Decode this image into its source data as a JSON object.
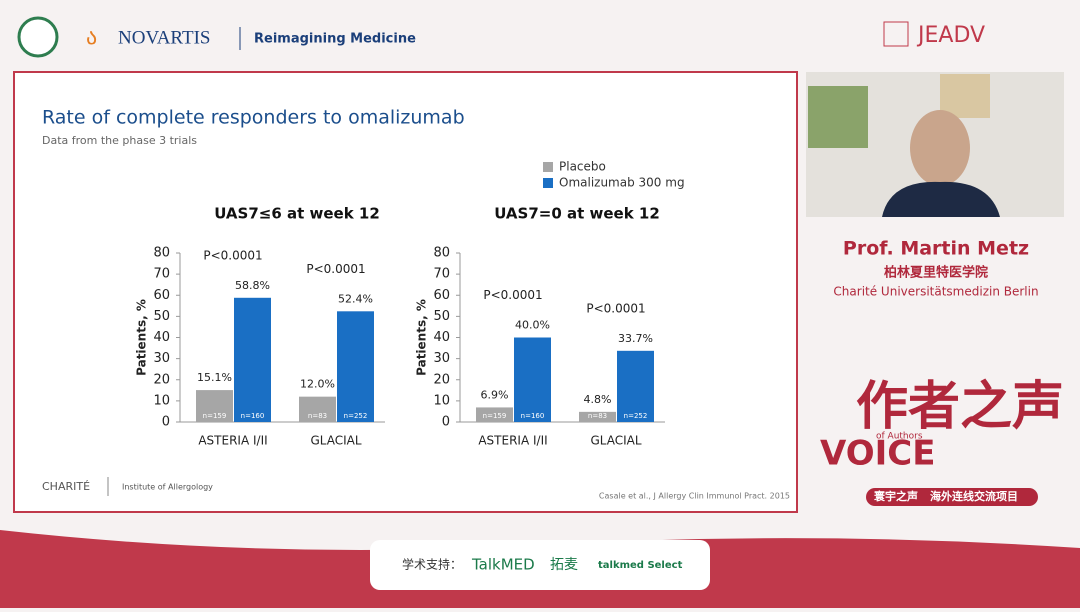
{
  "header": {
    "brand": "NOVARTIS",
    "tagline": "Reimagining Medicine",
    "journal": "JEADV"
  },
  "slide": {
    "title": "Rate of complete responders to omalizumab",
    "subtitle": "Data from the phase 3 trials",
    "institution": "CHARITÉ",
    "department": "Institute of Allergology",
    "citation": "Casale et al., J Allergy Clin Immunol Pract. 2015"
  },
  "chart_data": [
    {
      "type": "bar",
      "title": "UAS7≤6 at week 12",
      "categories": [
        "ASTERIA I/II",
        "GLACIAL"
      ],
      "y_label": "Patients, %",
      "ylim": [
        0,
        80
      ],
      "yticks": [
        0,
        10,
        20,
        30,
        40,
        50,
        60,
        70,
        80
      ],
      "annotations": [
        "P<0.0001",
        "P<0.0001"
      ],
      "series": [
        {
          "name": "Placebo",
          "color": "#a6a6a6",
          "values": [
            15.1,
            12.0
          ],
          "value_labels": [
            "15.1%",
            "12.0%"
          ],
          "n_labels": [
            "n=159",
            "n=83"
          ]
        },
        {
          "name": "Omalizumab 300 mg",
          "color": "#1a6fc4",
          "values": [
            58.8,
            52.4
          ],
          "value_labels": [
            "58.8%",
            "52.4%"
          ],
          "n_labels": [
            "n=160",
            "n=252"
          ]
        }
      ]
    },
    {
      "type": "bar",
      "title": "UAS7=0 at week 12",
      "categories": [
        "ASTERIA I/II",
        "GLACIAL"
      ],
      "y_label": "Patients, %",
      "ylim": [
        0,
        80
      ],
      "yticks": [
        0,
        10,
        20,
        30,
        40,
        50,
        60,
        70,
        80
      ],
      "annotations": [
        "P<0.0001",
        "P<0.0001"
      ],
      "series": [
        {
          "color": "#a6a6a6",
          "values": [
            6.9,
            4.8
          ],
          "value_labels": [
            "6.9%",
            "4.8%"
          ],
          "n_labels": [
            "n=159",
            "n=83"
          ]
        },
        {
          "color": "#1a6fc4",
          "values": [
            40.0,
            33.7
          ],
          "value_labels": [
            "40.0%",
            "33.7%"
          ],
          "n_labels": [
            "n=160",
            "n=252"
          ]
        }
      ]
    }
  ],
  "speaker": {
    "name": "Prof. Martin Metz",
    "affiliation_cn": "柏林夏里特医学院",
    "affiliation": "Charité Universitätsmedizin Berlin"
  },
  "branding": {
    "cn_title": "作者之声",
    "voice": "VOICE",
    "of_authors": "of Authors",
    "program_a": "寰宇之声",
    "program_b": "海外连线交流项目"
  },
  "footer": {
    "support": "学术支持：",
    "talkmed": "TalkMED",
    "talkmed_cn": "拓麦",
    "select": "talkmed Select"
  }
}
